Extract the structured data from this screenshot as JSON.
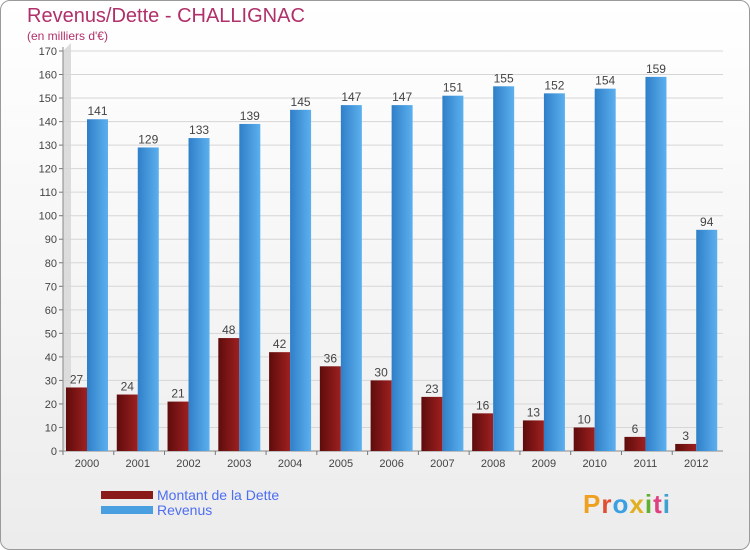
{
  "title": "Revenus/Dette - CHALLIGNAC",
  "subtitle": "(en milliers d'€)",
  "logo": "Proxiti",
  "colors": {
    "debt": "#8b1a1a",
    "revenue": "#4a9fe0",
    "title": "#b0306a",
    "legend_text": "#4d6ef0"
  },
  "chart_data": {
    "type": "bar",
    "categories": [
      "2000",
      "2001",
      "2002",
      "2003",
      "2004",
      "2005",
      "2006",
      "2007",
      "2008",
      "2009",
      "2010",
      "2011",
      "2012"
    ],
    "series": [
      {
        "name": "Montant de la Dette",
        "values": [
          27,
          24,
          21,
          48,
          42,
          36,
          30,
          23,
          16,
          13,
          10,
          6,
          3
        ]
      },
      {
        "name": "Revenus",
        "values": [
          141,
          129,
          133,
          139,
          145,
          147,
          147,
          151,
          155,
          152,
          154,
          159,
          94
        ]
      }
    ],
    "ylim": [
      0,
      170
    ],
    "yticks": [
      0,
      10,
      20,
      30,
      40,
      50,
      60,
      70,
      80,
      90,
      100,
      110,
      120,
      130,
      140,
      150,
      160,
      170
    ],
    "grid": true,
    "legend": "bottom-left"
  }
}
